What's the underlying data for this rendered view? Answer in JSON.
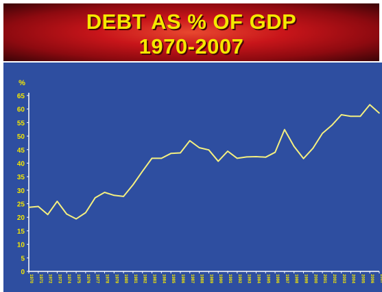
{
  "banner": {
    "title_line1": "DEBT AS % OF GDP",
    "title_line2": "1970-2007"
  },
  "colors": {
    "banner_red": "#c8151a",
    "title_yellow": "#f5e800",
    "panel_blue": "#2e4ea0",
    "line_yellow": "#f5f080",
    "axis_white": "#ffffff"
  },
  "chart_data": {
    "type": "line",
    "title": "DEBT AS % OF GDP 1970-2007",
    "ylabel": "%",
    "xlabel": "",
    "ylim": [
      0,
      65
    ],
    "yticks": [
      0,
      5,
      10,
      15,
      20,
      25,
      30,
      35,
      40,
      45,
      50,
      55,
      60,
      65
    ],
    "grid": false,
    "legend": "none",
    "x": [
      "1970",
      "1971",
      "1972",
      "1973",
      "1974",
      "1975",
      "1976",
      "1977",
      "1978",
      "1979",
      "1980",
      "1981",
      "1982",
      "1983",
      "1984",
      "1985",
      "1986",
      "1987",
      "1988",
      "1989",
      "1990",
      "1991",
      "1992",
      "1993",
      "1994",
      "1995",
      "1996",
      "1997",
      "1998",
      "1999",
      "2000",
      "2001",
      "2002",
      "2003",
      "2004",
      "2005",
      "2006",
      "2007"
    ],
    "series": [
      {
        "values": [
          23.7,
          24.0,
          21.0,
          25.9,
          21.2,
          19.4,
          21.7,
          27.2,
          29.2,
          28.1,
          27.7,
          32.0,
          37.0,
          41.8,
          41.8,
          43.6,
          43.8,
          48.3,
          45.7,
          44.9,
          40.7,
          44.4,
          41.8,
          42.3,
          42.4,
          42.2,
          44.0,
          52.4,
          46.2,
          41.7,
          45.5,
          51.0,
          54.0,
          57.9,
          57.3,
          57.3,
          61.6,
          58.5
        ]
      }
    ]
  }
}
